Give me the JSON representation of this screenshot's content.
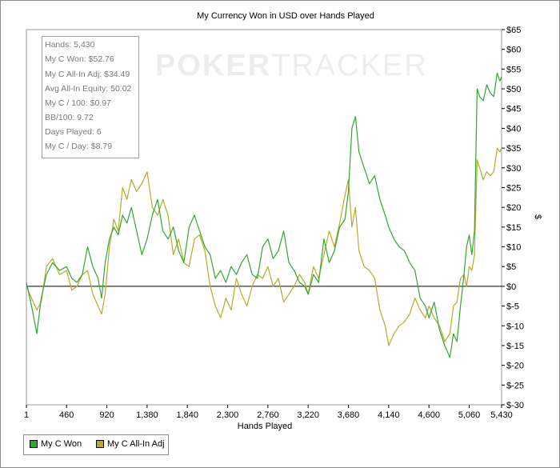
{
  "chart_data": {
    "type": "line",
    "title": "My Currency Won in USD over Hands Played",
    "xlabel": "Hands Played",
    "ylabel": "$",
    "xlim": [
      1,
      5430
    ],
    "ylim": [
      -30,
      65
    ],
    "x_ticks": [
      "1",
      "460",
      "920",
      "1,380",
      "1,840",
      "2,300",
      "2,760",
      "3,220",
      "3,680",
      "4,140",
      "4,600",
      "5,060",
      "5,430"
    ],
    "y_ticks": [
      "$65",
      "$60",
      "$55",
      "$50",
      "$45",
      "$40",
      "$35",
      "$30",
      "$25",
      "$20",
      "$15",
      "$10",
      "$5",
      "$0",
      "$-5",
      "$-10",
      "$-15",
      "$-20",
      "$-25",
      "$-30"
    ],
    "grid": false,
    "legend_position": "bottom-left",
    "series": [
      {
        "name": "My C Won",
        "color": "#2fa82f",
        "x": [
          1,
          60,
          120,
          170,
          230,
          300,
          380,
          460,
          520,
          580,
          640,
          700,
          760,
          820,
          860,
          900,
          950,
          1000,
          1050,
          1100,
          1150,
          1200,
          1260,
          1320,
          1380,
          1440,
          1500,
          1560,
          1620,
          1680,
          1740,
          1800,
          1860,
          1920,
          1980,
          2040,
          2100,
          2160,
          2220,
          2280,
          2340,
          2400,
          2460,
          2520,
          2580,
          2640,
          2700,
          2760,
          2820,
          2880,
          2940,
          3000,
          3060,
          3120,
          3180,
          3220,
          3280,
          3340,
          3400,
          3460,
          3520,
          3580,
          3640,
          3680,
          3720,
          3760,
          3800,
          3860,
          3920,
          3980,
          4040,
          4100,
          4140,
          4200,
          4260,
          4320,
          4380,
          4440,
          4500,
          4560,
          4600,
          4660,
          4720,
          4780,
          4840,
          4880,
          4920,
          4960,
          5000,
          5030,
          5060,
          5090,
          5120,
          5150,
          5180,
          5220,
          5260,
          5300,
          5340,
          5380,
          5410,
          5430
        ],
        "y": [
          1,
          -5,
          -12,
          -3,
          3,
          6,
          4,
          5,
          2,
          1,
          3,
          10,
          5,
          2,
          -3,
          6,
          12,
          15,
          13,
          18,
          16,
          20,
          14,
          8,
          12,
          18,
          22,
          14,
          12,
          15,
          9,
          6,
          15,
          18,
          14,
          10,
          8,
          2,
          4,
          1,
          5,
          3,
          6,
          8,
          3,
          2,
          10,
          12,
          7,
          9,
          14,
          6,
          4,
          1,
          0,
          -2,
          3,
          1,
          12,
          6,
          9,
          15,
          17,
          24,
          40,
          43,
          34,
          30,
          26,
          28,
          22,
          18,
          15,
          12,
          10,
          9,
          6,
          4,
          -3,
          -5,
          -8,
          -4,
          -11,
          -15,
          -18,
          -12,
          -14,
          -5,
          3,
          10,
          13,
          8,
          14,
          50,
          48,
          47,
          51,
          49,
          48,
          54,
          52,
          53
        ]
      },
      {
        "name": "My C All-In Adj",
        "color": "#b8aa2a",
        "x": [
          1,
          60,
          120,
          170,
          230,
          300,
          380,
          460,
          520,
          580,
          640,
          700,
          760,
          820,
          860,
          900,
          950,
          1000,
          1050,
          1100,
          1150,
          1200,
          1260,
          1320,
          1380,
          1440,
          1500,
          1560,
          1620,
          1680,
          1740,
          1800,
          1860,
          1920,
          1980,
          2040,
          2100,
          2160,
          2220,
          2280,
          2340,
          2400,
          2460,
          2520,
          2580,
          2640,
          2700,
          2760,
          2820,
          2880,
          2940,
          3000,
          3060,
          3120,
          3180,
          3220,
          3280,
          3340,
          3400,
          3460,
          3520,
          3580,
          3640,
          3680,
          3720,
          3760,
          3800,
          3860,
          3920,
          3980,
          4040,
          4100,
          4140,
          4200,
          4260,
          4320,
          4380,
          4440,
          4500,
          4560,
          4600,
          4660,
          4720,
          4780,
          4840,
          4880,
          4920,
          4960,
          5000,
          5030,
          5060,
          5090,
          5120,
          5150,
          5180,
          5220,
          5260,
          5300,
          5340,
          5380,
          5410,
          5430
        ],
        "y": [
          0,
          -3,
          -6,
          -4,
          5,
          7,
          3,
          4,
          -1,
          0,
          3,
          4,
          -2,
          -5,
          -7,
          -2,
          10,
          17,
          14,
          25,
          22,
          27,
          24,
          26,
          29,
          20,
          18,
          22,
          18,
          8,
          12,
          6,
          5,
          12,
          13,
          9,
          0,
          -5,
          -8,
          -3,
          -6,
          2,
          -2,
          -5,
          0,
          3,
          2,
          5,
          0,
          2,
          -4,
          -2,
          0,
          3,
          1,
          -2,
          5,
          2,
          8,
          14,
          10,
          16,
          23,
          27,
          15,
          20,
          9,
          5,
          4,
          2,
          -6,
          -10,
          -15,
          -12,
          -10,
          -9,
          -7,
          -3,
          -6,
          -8,
          -5,
          -8,
          -10,
          -14,
          -12,
          -5,
          -4,
          2,
          3,
          0,
          5,
          4,
          8,
          32,
          30,
          27,
          29,
          28,
          29,
          35,
          34,
          35
        ]
      }
    ]
  },
  "stats": [
    "Hands: 5,430",
    "My C Won: $52.76",
    "My C All-In Adj: $34.49",
    "Avg All-In Equity: 50.02",
    "My C / 100: $0.97",
    "BB/100: 9.72",
    "Days Played: 6",
    "My C / Day: $8.79"
  ],
  "watermark": {
    "bold": "POKER",
    "thin": "TRACKER"
  }
}
